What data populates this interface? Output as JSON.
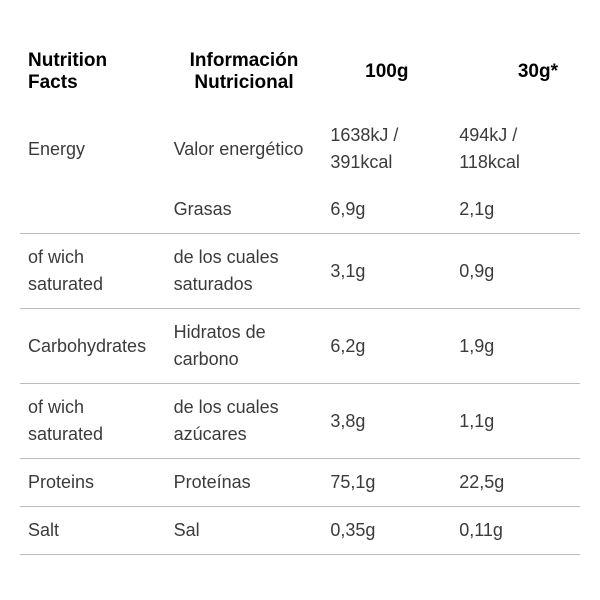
{
  "headers": {
    "col1": "Nutrition Facts",
    "col2": "Información Nutricional",
    "col3": "100g",
    "col4": "30g*"
  },
  "rows": [
    {
      "c1": "Energy",
      "c2": "Valor energético",
      "c3": "1638kJ / 391kcal",
      "c4": "494kJ / 118kcal",
      "border": false
    },
    {
      "c1": "",
      "c2": "Grasas",
      "c3": "6,9g",
      "c4": "2,1g",
      "border": true
    },
    {
      "c1": "of wich saturated",
      "c2": "de los cuales saturados",
      "c3": "3,1g",
      "c4": "0,9g",
      "border": true
    },
    {
      "c1": "Carbohydrates",
      "c2": "Hidratos de carbono",
      "c3": "6,2g",
      "c4": "1,9g",
      "border": true
    },
    {
      "c1": "of wich saturated",
      "c2": "de los cuales azúcares",
      "c3": "3,8g",
      "c4": "1,1g",
      "border": true
    },
    {
      "c1": "Proteins",
      "c2": "Proteínas",
      "c3": "75,1g",
      "c4": "22,5g",
      "border": true
    },
    {
      "c1": "Salt",
      "c2": "Sal",
      "c3": "0,35g",
      "c4": "0,11g",
      "border": true
    }
  ]
}
